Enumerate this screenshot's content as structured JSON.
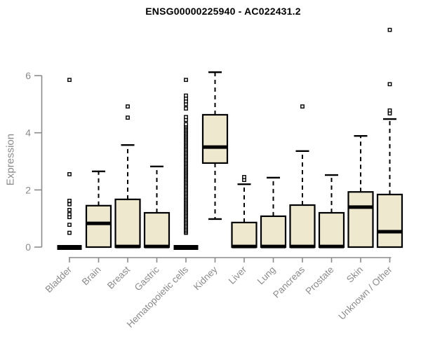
{
  "header": {
    "title": "ENSG00000225940 - AC022431.2"
  },
  "chart_data": {
    "type": "boxplot",
    "title": "ENSG00000225940 - AC022431.2",
    "ylabel": "Expression",
    "xlabel": "",
    "ylim": [
      0,
      6
    ],
    "yticks": [
      0,
      2,
      4,
      6
    ],
    "grid": false,
    "legend": "none",
    "categories": [
      "Bladder",
      "Brain",
      "Breast",
      "Gastric",
      "Hematopoietic cells",
      "Kidney",
      "Liver",
      "Lung",
      "Pancreas",
      "Prostate",
      "Skin",
      "Unknown / Other"
    ],
    "series": [
      {
        "name": "Bladder",
        "low": 0,
        "q1": 0,
        "median": 0,
        "q3": 0,
        "high": 0,
        "outliers": [
          0.5,
          0.78,
          1.05,
          1.15,
          1.3,
          1.5,
          1.62,
          2.55,
          5.85
        ]
      },
      {
        "name": "Brain",
        "low": 0,
        "q1": 0,
        "median": 0.83,
        "q3": 1.45,
        "high": 2.65,
        "outliers": []
      },
      {
        "name": "Breast",
        "low": 0,
        "q1": 0,
        "median": 0.02,
        "q3": 1.67,
        "high": 3.57,
        "outliers": [
          4.53,
          4.92
        ]
      },
      {
        "name": "Gastric",
        "low": 0,
        "q1": 0,
        "median": 0.02,
        "q3": 1.2,
        "high": 2.82,
        "outliers": []
      },
      {
        "name": "Hematopoietic cells",
        "low": 0,
        "q1": 0,
        "median": 0,
        "q3": 0,
        "high": 0,
        "outliers": [
          4.45,
          4.55,
          4.85,
          5.0,
          5.1,
          5.2,
          5.3,
          5.85
        ],
        "outlier_band": {
          "from": 0.5,
          "to": 4.3,
          "step": 0.05
        }
      },
      {
        "name": "Kidney",
        "low": 0.98,
        "q1": 2.94,
        "median": 3.5,
        "q3": 4.63,
        "high": 6.12,
        "outliers": []
      },
      {
        "name": "Liver",
        "low": 0,
        "q1": 0,
        "median": 0.02,
        "q3": 0.86,
        "high": 2.2,
        "outliers": [
          2.35,
          2.45
        ]
      },
      {
        "name": "Lung",
        "low": 0,
        "q1": 0,
        "median": 0.02,
        "q3": 1.08,
        "high": 2.43,
        "outliers": []
      },
      {
        "name": "Pancreas",
        "low": 0,
        "q1": 0,
        "median": 0.02,
        "q3": 1.47,
        "high": 3.36,
        "outliers": [
          4.92
        ]
      },
      {
        "name": "Prostate",
        "low": 0,
        "q1": 0,
        "median": 0.02,
        "q3": 1.2,
        "high": 2.52,
        "outliers": []
      },
      {
        "name": "Skin",
        "low": 0,
        "q1": 0,
        "median": 1.4,
        "q3": 1.93,
        "high": 3.89,
        "outliers": []
      },
      {
        "name": "Unknown / Other",
        "low": 0,
        "q1": 0,
        "median": 0.54,
        "q3": 1.84,
        "high": 4.48,
        "outliers": [
          4.68,
          4.78,
          5.7,
          7.6
        ]
      }
    ],
    "colors": {
      "box_fill": "#EDE8CE",
      "box_stroke": "#000000",
      "median": "#000000",
      "whisker": "#000000",
      "axis": "#8B8B8B",
      "tick_label": "#8B8B8B",
      "title": "#000000"
    }
  }
}
